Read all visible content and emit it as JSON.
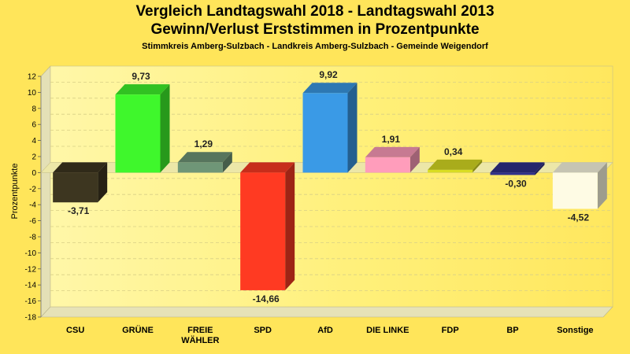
{
  "title": "Vergleich Landtagswahl 2018 - Landtagswahl 2013",
  "subtitle": "Gewinn/Verlust Erststimmen in Prozentpunkte",
  "caption": "Stimmkreis Amberg-Sulzbach - Landkreis Amberg-Sulzbach - Gemeinde Weigendorf",
  "chart_data": {
    "type": "bar",
    "title": "Vergleich Landtagswahl 2018 - Landtagswahl 2013",
    "xlabel": "",
    "ylabel": "Prozentpunkte",
    "ylim": [
      -18,
      12
    ],
    "yticks": [
      12,
      10,
      8,
      6,
      4,
      2,
      0,
      -2,
      -4,
      -6,
      -8,
      -10,
      -12,
      -14,
      -16,
      -18
    ],
    "grid": true,
    "categories": [
      [
        "CSU"
      ],
      [
        "GRÜNE"
      ],
      [
        "FREIE",
        "WÄHLER"
      ],
      [
        "SPD"
      ],
      [
        "AfD"
      ],
      [
        "DIE LINKE"
      ],
      [
        "FDP"
      ],
      [
        "BP"
      ],
      [
        "Sonstige"
      ]
    ],
    "values": [
      -3.71,
      9.73,
      1.29,
      -14.66,
      9.92,
      1.91,
      0.34,
      -0.3,
      -4.52
    ],
    "labels": [
      "-3,71",
      "9,73",
      "1,29",
      "-14,66",
      "9,92",
      "1,91",
      "0,34",
      "-0,30",
      "-4,52"
    ],
    "colors": [
      "#3d3620",
      "#3ff72c",
      "#6f9677",
      "#ff3a22",
      "#3a9ae6",
      "#ff9dbb",
      "#d9dd22",
      "#30308a",
      "#fefbe4"
    ]
  }
}
